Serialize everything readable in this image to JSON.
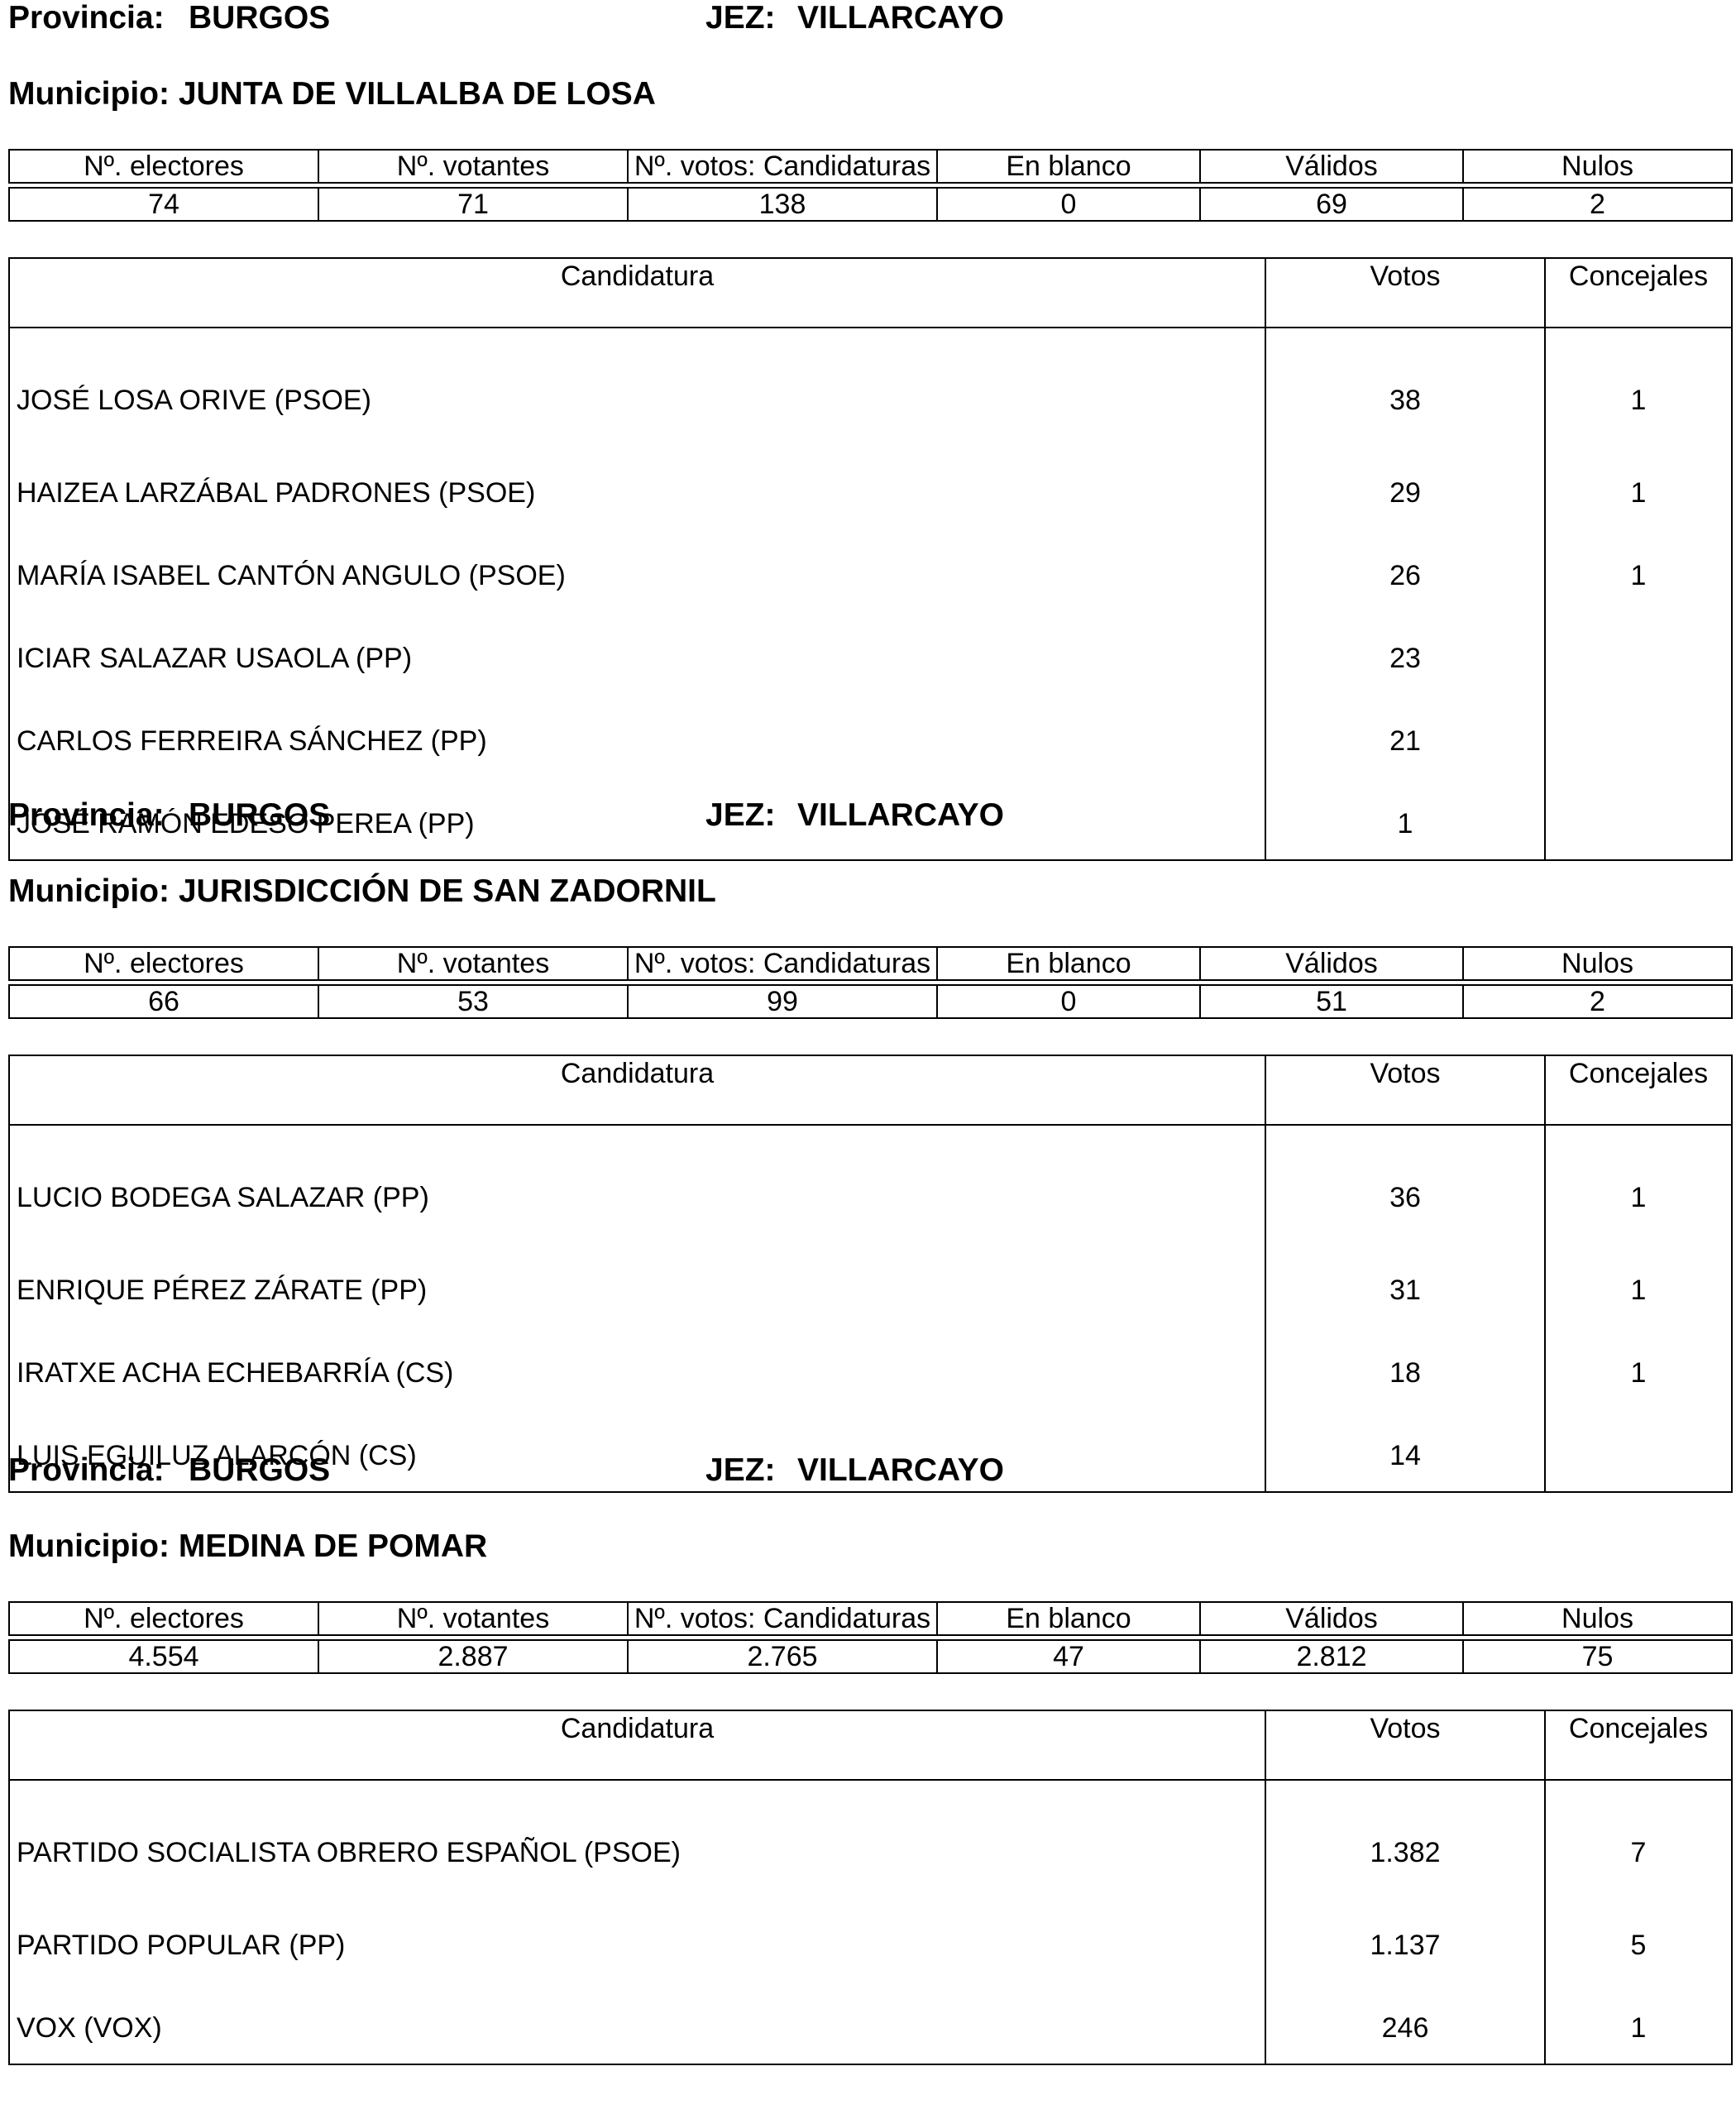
{
  "sections": [
    {
      "provincia_label": "Provincia:",
      "provincia": "BURGOS",
      "jez_label": "JEZ:",
      "jez": "VILLARCAYO",
      "municipio_label": "Municipio:",
      "municipio": "JUNTA DE VILLALBA DE LOSA",
      "stats_headers": [
        "Nº. electores",
        "Nº. votantes",
        "Nº. votos: Candidaturas",
        "En blanco",
        "Válidos",
        "Nulos"
      ],
      "stats_values": [
        "74",
        "71",
        "138",
        "0",
        "69",
        "2"
      ],
      "cand_headers": [
        "Candidatura",
        "Votos",
        "Concejales"
      ],
      "candidates": [
        {
          "name": "JOSÉ LOSA ORIVE (PSOE)",
          "votos": "38",
          "concejales": "1"
        },
        {
          "name": "HAIZEA LARZÁBAL PADRONES (PSOE)",
          "votos": "29",
          "concejales": "1"
        },
        {
          "name": "MARÍA ISABEL CANTÓN ANGULO (PSOE)",
          "votos": "26",
          "concejales": "1"
        },
        {
          "name": "ICIAR SALAZAR USAOLA (PP)",
          "votos": "23",
          "concejales": ""
        },
        {
          "name": "CARLOS FERREIRA SÁNCHEZ (PP)",
          "votos": "21",
          "concejales": ""
        },
        {
          "name": "JOSÉ RAMÓN EDESO PEREA (PP)",
          "votos": "1",
          "concejales": ""
        }
      ]
    },
    {
      "provincia_label": "Provincia:",
      "provincia": "BURGOS",
      "jez_label": "JEZ:",
      "jez": "VILLARCAYO",
      "municipio_label": "Municipio:",
      "municipio": "JURISDICCIÓN DE SAN ZADORNIL",
      "stats_headers": [
        "Nº. electores",
        "Nº. votantes",
        "Nº. votos: Candidaturas",
        "En blanco",
        "Válidos",
        "Nulos"
      ],
      "stats_values": [
        "66",
        "53",
        "99",
        "0",
        "51",
        "2"
      ],
      "cand_headers": [
        "Candidatura",
        "Votos",
        "Concejales"
      ],
      "candidates": [
        {
          "name": "LUCIO BODEGA SALAZAR (PP)",
          "votos": "36",
          "concejales": "1"
        },
        {
          "name": "ENRIQUE PÉREZ ZÁRATE (PP)",
          "votos": "31",
          "concejales": "1"
        },
        {
          "name": "IRATXE ACHA ECHEBARRÍA (CS)",
          "votos": "18",
          "concejales": "1"
        },
        {
          "name": "LUIS EGUILUZ ALARCÓN (CS)",
          "votos": "14",
          "concejales": ""
        }
      ]
    },
    {
      "provincia_label": "Provincia:",
      "provincia": "BURGOS",
      "jez_label": "JEZ:",
      "jez": "VILLARCAYO",
      "municipio_label": "Municipio:",
      "municipio": "MEDINA DE POMAR",
      "stats_headers": [
        "Nº. electores",
        "Nº. votantes",
        "Nº. votos: Candidaturas",
        "En blanco",
        "Válidos",
        "Nulos"
      ],
      "stats_values": [
        "4.554",
        "2.887",
        "2.765",
        "47",
        "2.812",
        "75"
      ],
      "cand_headers": [
        "Candidatura",
        "Votos",
        "Concejales"
      ],
      "candidates": [
        {
          "name": "PARTIDO SOCIALISTA OBRERO ESPAÑOL (PSOE)",
          "votos": "1.382",
          "concejales": "7"
        },
        {
          "name": "PARTIDO POPULAR (PP)",
          "votos": "1.137",
          "concejales": "5"
        },
        {
          "name": "VOX (VOX)",
          "votos": "246",
          "concejales": "1"
        }
      ]
    }
  ]
}
